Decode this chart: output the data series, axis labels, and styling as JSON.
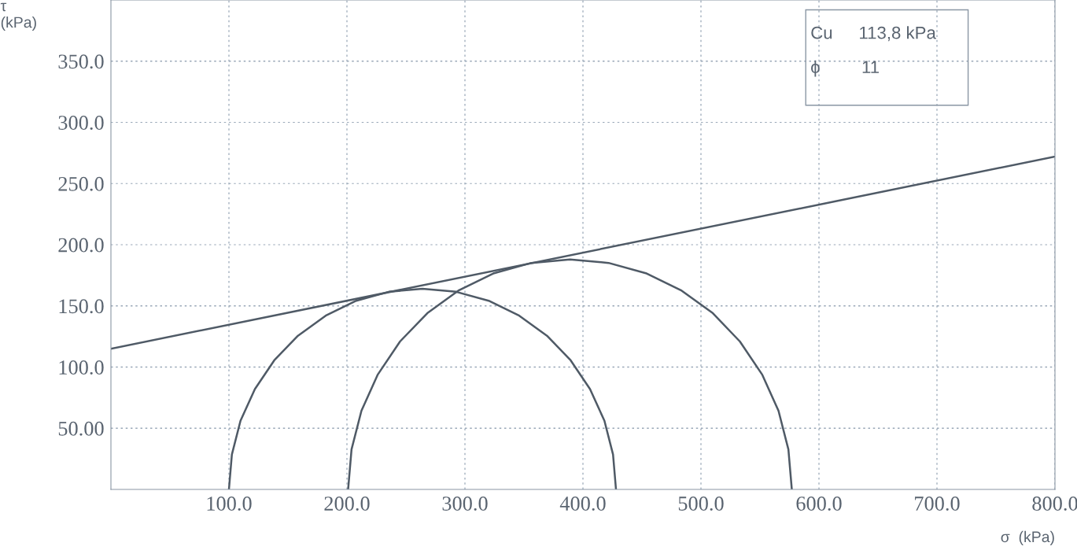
{
  "chart_data": {
    "type": "line",
    "xlabel": "σ  (kPa)",
    "ylabel": "τ\n(kPa)",
    "xlim": [
      0,
      800
    ],
    "ylim": [
      0,
      400
    ],
    "xticks": [
      {
        "value": 100,
        "label": "100.0"
      },
      {
        "value": 200,
        "label": "200.0"
      },
      {
        "value": 300,
        "label": "300.0"
      },
      {
        "value": 400,
        "label": "400.0"
      },
      {
        "value": 500,
        "label": "500.0"
      },
      {
        "value": 600,
        "label": "600.0"
      },
      {
        "value": 700,
        "label": "700.0"
      },
      {
        "value": 800,
        "label": "800.0"
      }
    ],
    "yticks": [
      {
        "value": 50,
        "label": "50.00"
      },
      {
        "value": 100,
        "label": "100.0"
      },
      {
        "value": 150,
        "label": "150.0"
      },
      {
        "value": 200,
        "label": "200.0"
      },
      {
        "value": 250,
        "label": "250.0"
      },
      {
        "value": 300,
        "label": "300.0"
      },
      {
        "value": 350,
        "label": "350.0"
      }
    ],
    "grid": true,
    "marker": "none",
    "line_style": "solid",
    "annotations": [
      "Cu",
      "113,8 kPa",
      "ϕ",
      "11"
    ],
    "series": [
      {
        "color": "#4f5a66",
        "x": [
          0,
          800
        ],
        "values": [
          115,
          272
        ]
      },
      {
        "color": "#4f5a66",
        "x": [
          100,
          102.5,
          109.8,
          122,
          138.4,
          158.5,
          182,
          207.9,
          235.5,
          264,
          292.5,
          320.1,
          346,
          369.5,
          389.6,
          406,
          418.2,
          425.5,
          428
        ],
        "values": [
          0,
          28.5,
          56.1,
          82,
          105.5,
          125.6,
          142,
          154.2,
          161.5,
          164,
          161.5,
          154.2,
          142,
          125.6,
          105.5,
          82,
          56.1,
          28.5,
          0
        ]
      },
      {
        "color": "#4f5a66",
        "x": [
          201,
          203.9,
          212.3,
          226.2,
          245,
          268.1,
          295,
          324.7,
          356.3,
          389,
          421.7,
          453.3,
          483,
          510.1,
          533,
          551.8,
          565.7,
          574.1,
          577
        ],
        "values": [
          0,
          32.7,
          64.3,
          94,
          120.9,
          144,
          162.8,
          176.7,
          185.1,
          188,
          185.1,
          176.7,
          162.8,
          144,
          120.9,
          94,
          64.3,
          32.7,
          0
        ]
      }
    ]
  }
}
